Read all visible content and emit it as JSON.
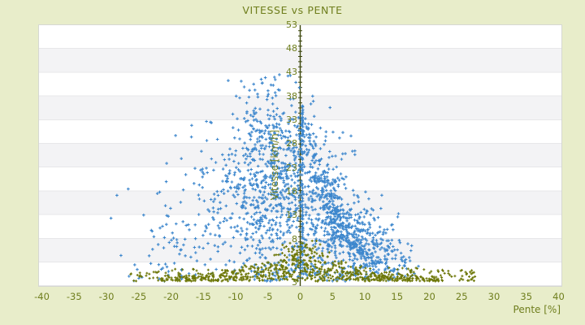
{
  "colors": {
    "background": "#e8edca",
    "label_text": "#6f7e1d",
    "axis_line": "#3c470c",
    "stripe_white": "#ffffff",
    "stripe_gray": "#f3f3f5",
    "plot_border": "#d6d8d2",
    "series_blue": "#3d87cd",
    "series_olive": "#6d7708"
  },
  "chart_data": {
    "type": "scatter",
    "title": "VITESSE vs PENTE",
    "xlabel": "Pente [%]",
    "ylabel": "Vitesse [km/h]",
    "xlim": [
      -40,
      40
    ],
    "ylim": [
      3,
      53
    ],
    "xticks": [
      -40,
      -35,
      -30,
      -25,
      -20,
      -15,
      -10,
      -5,
      0,
      5,
      10,
      15,
      20,
      25,
      30,
      35,
      40
    ],
    "yticks": [
      53,
      48,
      43,
      38,
      33,
      28,
      23,
      18,
      13,
      8,
      3
    ],
    "grid": "horizontal-stripes",
    "legend": "none",
    "zero_axis": "vertical-line-at-x0-with-unit-ticks",
    "marker": "plus",
    "seed": 1234,
    "series": [
      {
        "name": "points-blue",
        "color": "#3d87cd",
        "marker": "plus",
        "clusters": [
          {
            "t": "gauss",
            "cx": -4.5,
            "cy": 19,
            "sx": 3.2,
            "sy": 6.5,
            "n": 300
          },
          {
            "t": "gauss",
            "cx": -9,
            "cy": 24,
            "sx": 4.5,
            "sy": 6,
            "n": 140
          },
          {
            "t": "gauss",
            "cx": -16,
            "cy": 12,
            "sx": 5.5,
            "sy": 5,
            "n": 85
          },
          {
            "t": "gauss",
            "cx": -5.5,
            "cy": 33,
            "sx": 2.8,
            "sy": 3.5,
            "n": 100
          },
          {
            "t": "gauss",
            "cx": -5,
            "cy": 40,
            "sx": 3,
            "sy": 2,
            "n": 30
          },
          {
            "t": "gauss",
            "cx": -1.5,
            "cy": 27,
            "sx": 1.3,
            "sy": 5,
            "n": 55
          },
          {
            "t": "gauss",
            "cx": 6,
            "cy": 13,
            "sx": 3.2,
            "sy": 4.5,
            "n": 310
          },
          {
            "t": "gauss",
            "cx": 10.5,
            "cy": 11,
            "sx": 2,
            "sy": 3,
            "n": 130
          },
          {
            "t": "gauss",
            "cx": 3.5,
            "cy": 23,
            "sx": 2.8,
            "sy": 5.5,
            "n": 120
          },
          {
            "t": "gauss",
            "cx": 13.5,
            "cy": 8,
            "sx": 2.5,
            "sy": 2.5,
            "n": 65
          },
          {
            "t": "gauss",
            "cx": 0.9,
            "cy": 31,
            "sx": 1.3,
            "sy": 4,
            "n": 55
          },
          {
            "t": "gauss",
            "cx": 0,
            "cy": 5.3,
            "sx": 7,
            "sy": 1.1,
            "n": 85
          },
          {
            "t": "vline",
            "x": 0.3,
            "jitter": 0.12,
            "y0": 3.8,
            "y1": 37.5,
            "n": 105
          },
          {
            "t": "segment",
            "x0": 0.8,
            "y0": 29.5,
            "x1": 7.5,
            "y1": 13.5,
            "jitter": 0.35,
            "n": 38
          },
          {
            "t": "segment",
            "x0": 1.2,
            "y0": 25,
            "x1": 8.5,
            "y1": 11.5,
            "jitter": 0.35,
            "n": 38
          },
          {
            "t": "segment",
            "x0": 1.8,
            "y0": 20.5,
            "x1": 9.5,
            "y1": 9.5,
            "jitter": 0.35,
            "n": 38
          },
          {
            "t": "segment",
            "x0": 2.5,
            "y0": 16.5,
            "x1": 11,
            "y1": 7.5,
            "jitter": 0.35,
            "n": 33
          },
          {
            "t": "segment",
            "x0": 0.6,
            "y0": 34,
            "x1": 5,
            "y1": 20.5,
            "jitter": 0.3,
            "n": 26
          },
          {
            "t": "segment",
            "x0": 3.5,
            "y0": 13.5,
            "x1": 13,
            "y1": 6.5,
            "jitter": 0.35,
            "n": 28
          },
          {
            "t": "segment",
            "x0": -8.5,
            "y0": 30,
            "x1": -1.5,
            "y1": 13,
            "jitter": 0.45,
            "n": 34
          },
          {
            "t": "segment",
            "x0": -11.5,
            "y0": 24.5,
            "x1": -3.5,
            "y1": 11,
            "jitter": 0.45,
            "n": 28
          },
          {
            "t": "segment",
            "x0": -6.5,
            "y0": 35.5,
            "x1": -1.8,
            "y1": 21,
            "jitter": 0.4,
            "n": 26
          },
          {
            "t": "segment",
            "x0": -14,
            "y0": 17.5,
            "x1": -5.5,
            "y1": 8.5,
            "jitter": 0.45,
            "n": 24
          },
          {
            "t": "uniform",
            "x0": -27,
            "x1": -17,
            "y0": 3.8,
            "y1": 7,
            "n": 13
          },
          {
            "t": "uniform",
            "x0": 12,
            "x1": 17.5,
            "y0": 4,
            "y1": 8,
            "n": 16
          },
          {
            "t": "uniform",
            "x0": -24,
            "x1": -12,
            "y0": 9.5,
            "y1": 15,
            "n": 12
          }
        ]
      },
      {
        "name": "points-olive",
        "color": "#6d7708",
        "marker": "plus",
        "clusters": [
          {
            "t": "mound",
            "xmin": -21.5,
            "xmax": 21.5,
            "xsigma": 8.5,
            "ybase": 3.3,
            "amp": 7.2,
            "width": 9,
            "n": 620
          },
          {
            "t": "uniform",
            "x0": -28,
            "x1": -20,
            "y0": 3.4,
            "y1": 5.4,
            "n": 28
          },
          {
            "t": "uniform",
            "x0": 20,
            "x1": 27.5,
            "y0": 3.4,
            "y1": 5.6,
            "n": 42
          },
          {
            "t": "uniform",
            "x0": -20,
            "x1": -10,
            "y0": 3.4,
            "y1": 5.8,
            "n": 36
          },
          {
            "t": "uniform",
            "x0": 10,
            "x1": 20,
            "y0": 3.4,
            "y1": 6,
            "n": 42
          },
          {
            "t": "gauss",
            "cx": 1,
            "cy": 8.6,
            "sx": 2,
            "sy": 1.3,
            "n": 32
          }
        ]
      }
    ]
  }
}
